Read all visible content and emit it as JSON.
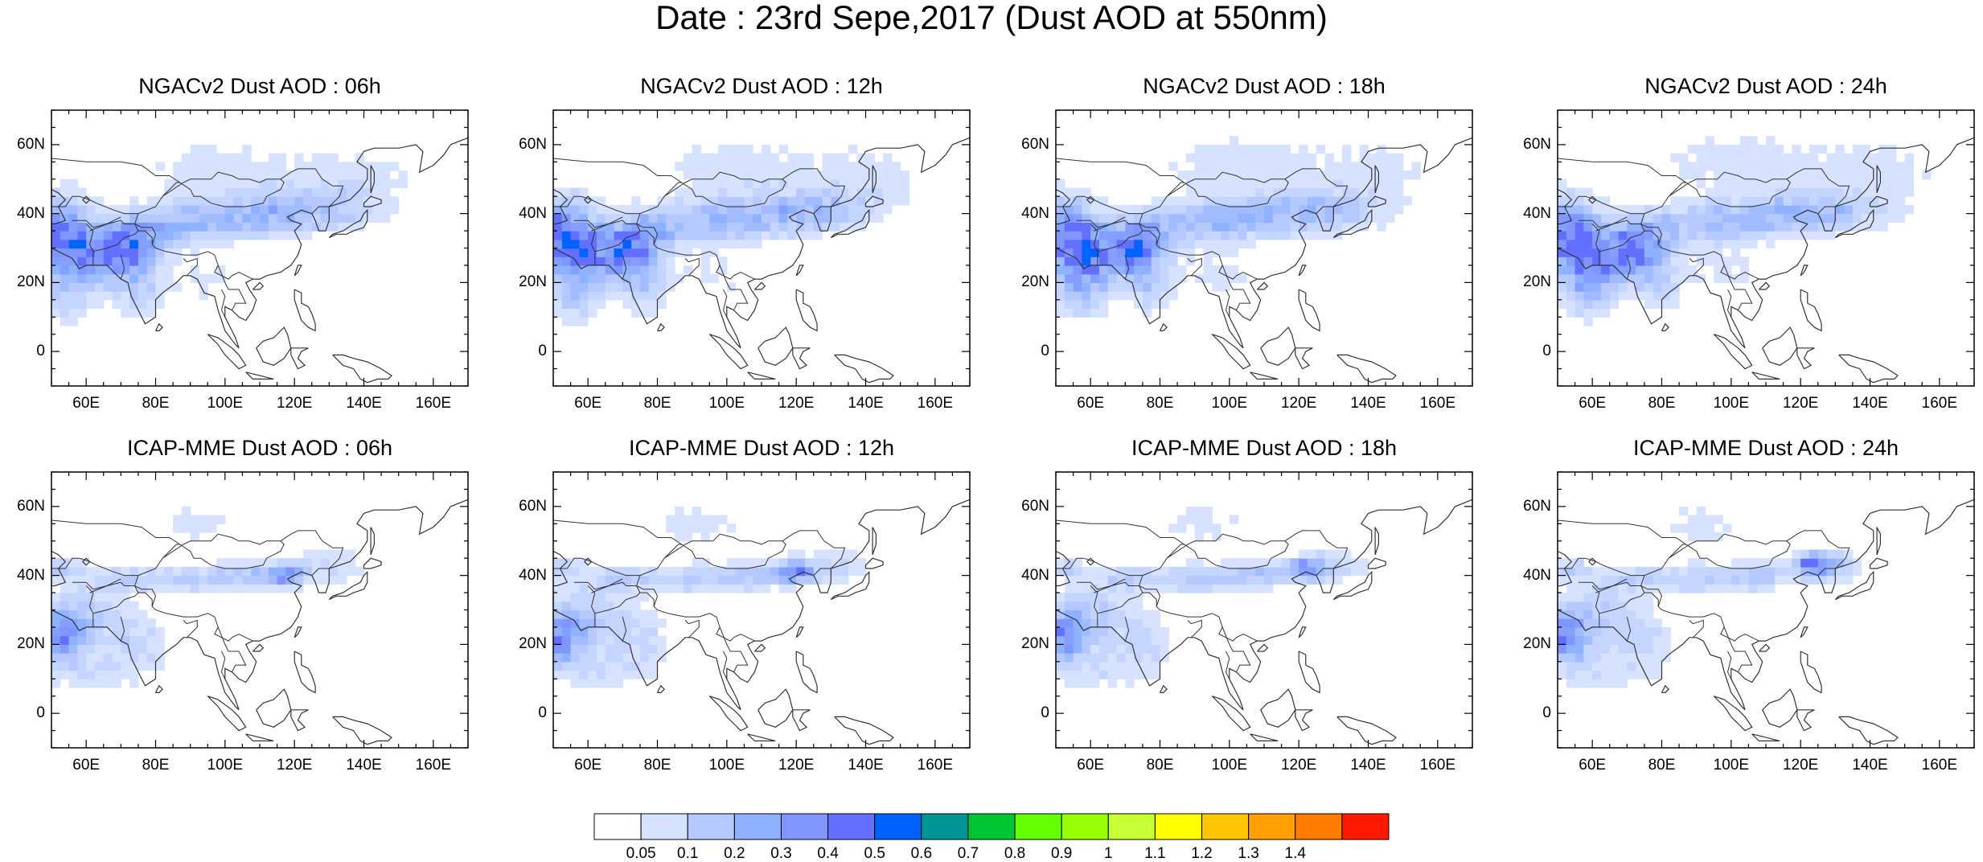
{
  "title": "Date : 23rd Sepe,2017 (Dust AOD at 550nm)",
  "panels": [
    {
      "title": "NGACv2 Dust AOD : 06h",
      "model": "ngac",
      "hour": 6
    },
    {
      "title": "NGACv2 Dust AOD : 12h",
      "model": "ngac",
      "hour": 12
    },
    {
      "title": "NGACv2 Dust AOD : 18h",
      "model": "ngac",
      "hour": 18
    },
    {
      "title": "NGACv2 Dust AOD : 24h",
      "model": "ngac",
      "hour": 24
    },
    {
      "title": "ICAP-MME Dust AOD : 06h",
      "model": "icap",
      "hour": 6
    },
    {
      "title": "ICAP-MME Dust AOD : 12h",
      "model": "icap",
      "hour": 12
    },
    {
      "title": "ICAP-MME Dust AOD : 18h",
      "model": "icap",
      "hour": 18
    },
    {
      "title": "ICAP-MME Dust AOD : 24h",
      "model": "icap",
      "hour": 24
    }
  ],
  "axes": {
    "lon_range": [
      50,
      170
    ],
    "lat_range": [
      -10,
      70
    ],
    "lon_ticks": [
      60,
      80,
      100,
      120,
      140,
      160
    ],
    "lon_tick_labels": [
      "60E",
      "80E",
      "100E",
      "120E",
      "140E",
      "160E"
    ],
    "lat_ticks": [
      60,
      40,
      20,
      0
    ],
    "lat_tick_labels": [
      "60N",
      "40N",
      "20N",
      "0"
    ]
  },
  "colorbar": {
    "labels": [
      "0.05",
      "0.1",
      "0.2",
      "0.3",
      "0.4",
      "0.5",
      "0.6",
      "0.7",
      "0.8",
      "0.9",
      "1",
      "1.1",
      "1.2",
      "1.3",
      "1.4"
    ],
    "colors": [
      "#ffffff",
      "#d6e2ff",
      "#b5c9ff",
      "#8eb2ff",
      "#7f96ff",
      "#6370ff",
      "#0063ff",
      "#009696",
      "#00c633",
      "#63ff00",
      "#96ff00",
      "#c6ff33",
      "#ffff00",
      "#ffc600",
      "#ffa000",
      "#ff7c00",
      "#ff1900"
    ]
  },
  "land_color": "#ffffff",
  "coast_color": "#333333"
}
